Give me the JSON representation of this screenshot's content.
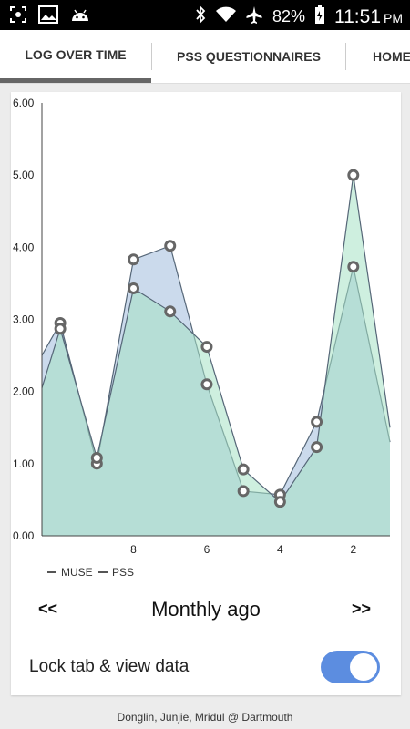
{
  "status_bar": {
    "battery": "82%",
    "time": "11:51",
    "ampm": "PM"
  },
  "tabs": [
    {
      "label": "LOG OVER TIME",
      "active": true
    },
    {
      "label": "PSS QUESTIONNAIRES",
      "active": false
    },
    {
      "label": "HOME",
      "active": false
    }
  ],
  "chart_data": {
    "type": "area",
    "ylim": [
      0,
      6
    ],
    "y_ticks": [
      "0.00",
      "1.00",
      "2.00",
      "3.00",
      "4.00",
      "5.00",
      "6.00"
    ],
    "x_ticks": [
      {
        "label": "8",
        "x": 8
      },
      {
        "label": "6",
        "x": 6
      },
      {
        "label": "4",
        "x": 4
      },
      {
        "label": "2",
        "x": 2
      }
    ],
    "xlim": [
      10.5,
      1
    ],
    "x": [
      10,
      9,
      8,
      7,
      6,
      5,
      4,
      3,
      2,
      1
    ],
    "series": [
      {
        "name": "MUSE",
        "color": "#a9c2e0",
        "values": [
          2.95,
          1.0,
          3.83,
          4.02,
          2.1,
          0.62,
          0.57,
          1.58,
          3.73,
          1.3
        ]
      },
      {
        "name": "PSS",
        "color": "#a6e2c4",
        "values": [
          2.87,
          1.08,
          3.43,
          3.11,
          2.62,
          0.92,
          0.47,
          1.23,
          5.0,
          1.5
        ]
      }
    ],
    "series_left": [
      2.5,
      2.05
    ],
    "legend_position": "bottom-left"
  },
  "nav": {
    "prev_label": "<<",
    "next_label": ">>",
    "range_label": "Monthly ago"
  },
  "lock": {
    "label": "Lock tab & view data",
    "enabled": true
  },
  "footer": "Donglin, Junjie, Mridul @ Dartmouth",
  "icons": [
    "screenshot-icon",
    "image-icon",
    "android-icon",
    "bluetooth-icon",
    "wifi-icon",
    "airplane-icon",
    "battery-icon"
  ]
}
